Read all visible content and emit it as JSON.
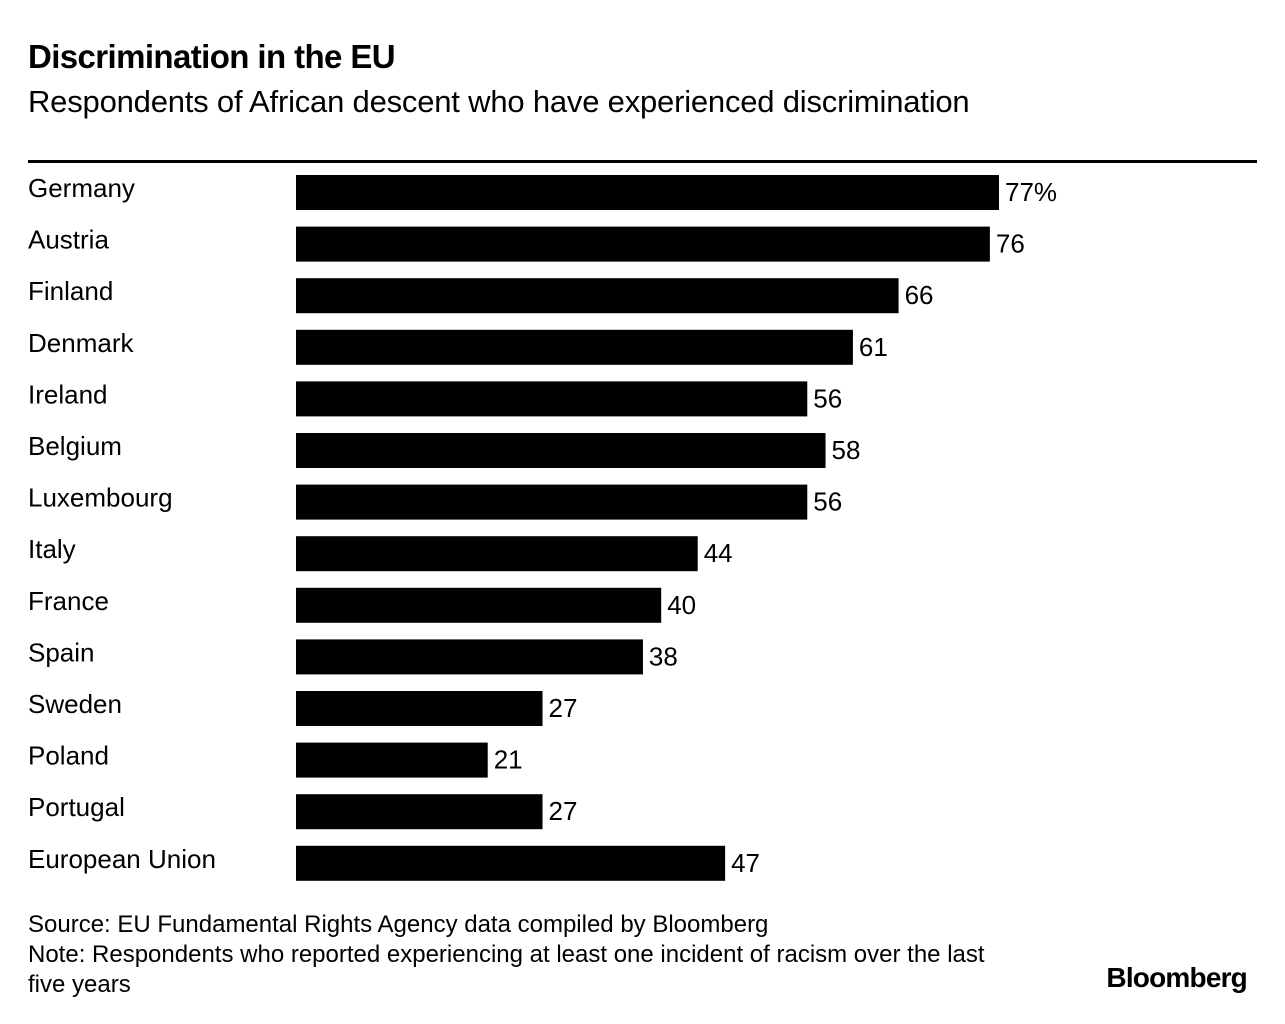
{
  "chart_data": {
    "type": "bar",
    "orientation": "horizontal",
    "title": "Discrimination in the EU",
    "subtitle": "Respondents of African descent who have experienced discrimination",
    "categories": [
      "Germany",
      "Austria",
      "Finland",
      "Denmark",
      "Ireland",
      "Belgium",
      "Luxembourg",
      "Italy",
      "France",
      "Spain",
      "Sweden",
      "Poland",
      "Portugal",
      "European Union"
    ],
    "values": [
      77,
      76,
      66,
      61,
      56,
      58,
      56,
      44,
      40,
      38,
      27,
      21,
      27,
      47
    ],
    "value_labels": [
      "77%",
      "76",
      "66",
      "61",
      "56",
      "58",
      "56",
      "44",
      "40",
      "38",
      "27",
      "21",
      "27",
      "47"
    ],
    "unit": "%",
    "xlim": [
      0,
      77
    ],
    "grid": false,
    "bar_color": "#000000"
  },
  "footer": {
    "source": "Source: EU Fundamental Rights Agency data compiled by Bloomberg",
    "note": "Note: Respondents who reported experiencing at least one incident of racism over the last five years",
    "brand": "Bloomberg"
  }
}
